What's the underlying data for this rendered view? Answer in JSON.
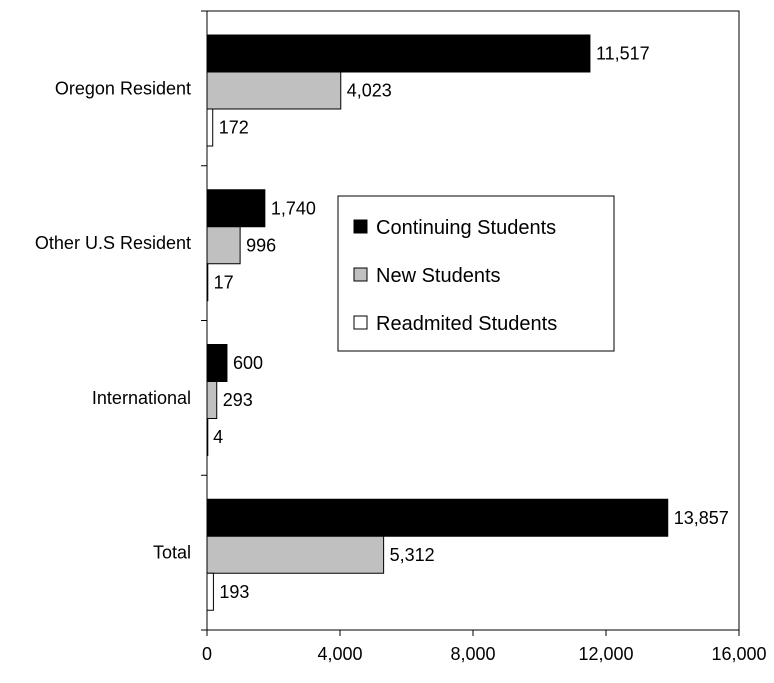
{
  "chart_data": {
    "type": "bar",
    "orientation": "horizontal",
    "categories": [
      "Oregon Resident",
      "Other U.S Resident",
      "International",
      "Total"
    ],
    "series": [
      {
        "name": "Continuing Students",
        "color": "#000000",
        "values": [
          11517,
          1740,
          600,
          13857
        ],
        "labels": [
          "11,517",
          "1,740",
          "600",
          "13,857"
        ]
      },
      {
        "name": "New Students",
        "color": "#c0c0c0",
        "values": [
          4023,
          996,
          293,
          5312
        ],
        "labels": [
          "4,023",
          "996",
          "293",
          "5,312"
        ]
      },
      {
        "name": "Readmited Students",
        "color": "#ffffff",
        "values": [
          172,
          17,
          4,
          193
        ],
        "labels": [
          "172",
          "17",
          "4",
          "193"
        ]
      }
    ],
    "x_ticks": [
      "0",
      "4,000",
      "8,000",
      "12,000",
      "16,000"
    ],
    "xlim": [
      0,
      16000
    ],
    "title": "",
    "xlabel": "",
    "ylabel": "",
    "grid": false,
    "legend_position": "center-right"
  }
}
